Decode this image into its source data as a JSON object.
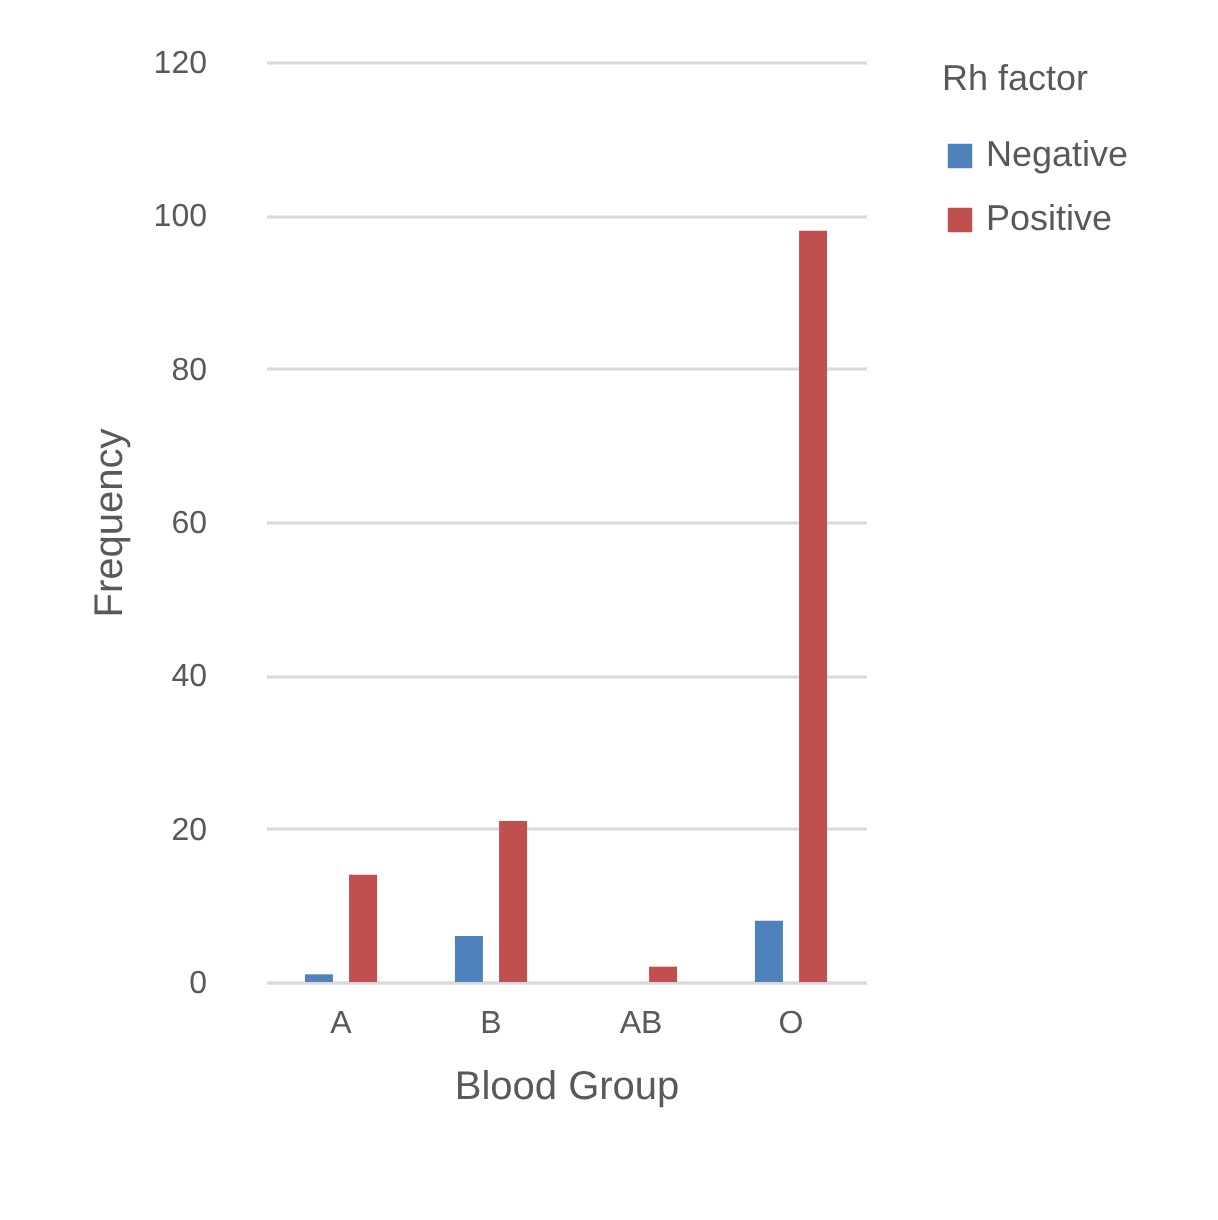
{
  "chart_data": {
    "type": "bar",
    "xlabel": "Blood Group",
    "ylabel": "Frequency",
    "legend_title": "Rh factor",
    "categories": [
      "A",
      "B",
      "AB",
      "O"
    ],
    "series": [
      {
        "name": "Negative",
        "color": "#4f81bd",
        "values": [
          1,
          6,
          0,
          8
        ]
      },
      {
        "name": "Positive",
        "color": "#c0504d",
        "values": [
          14,
          21,
          2,
          98
        ]
      }
    ],
    "ylim": [
      0,
      120
    ],
    "yticks": [
      0,
      20,
      40,
      60,
      80,
      100,
      120
    ],
    "grid": "y",
    "legend": "right"
  }
}
